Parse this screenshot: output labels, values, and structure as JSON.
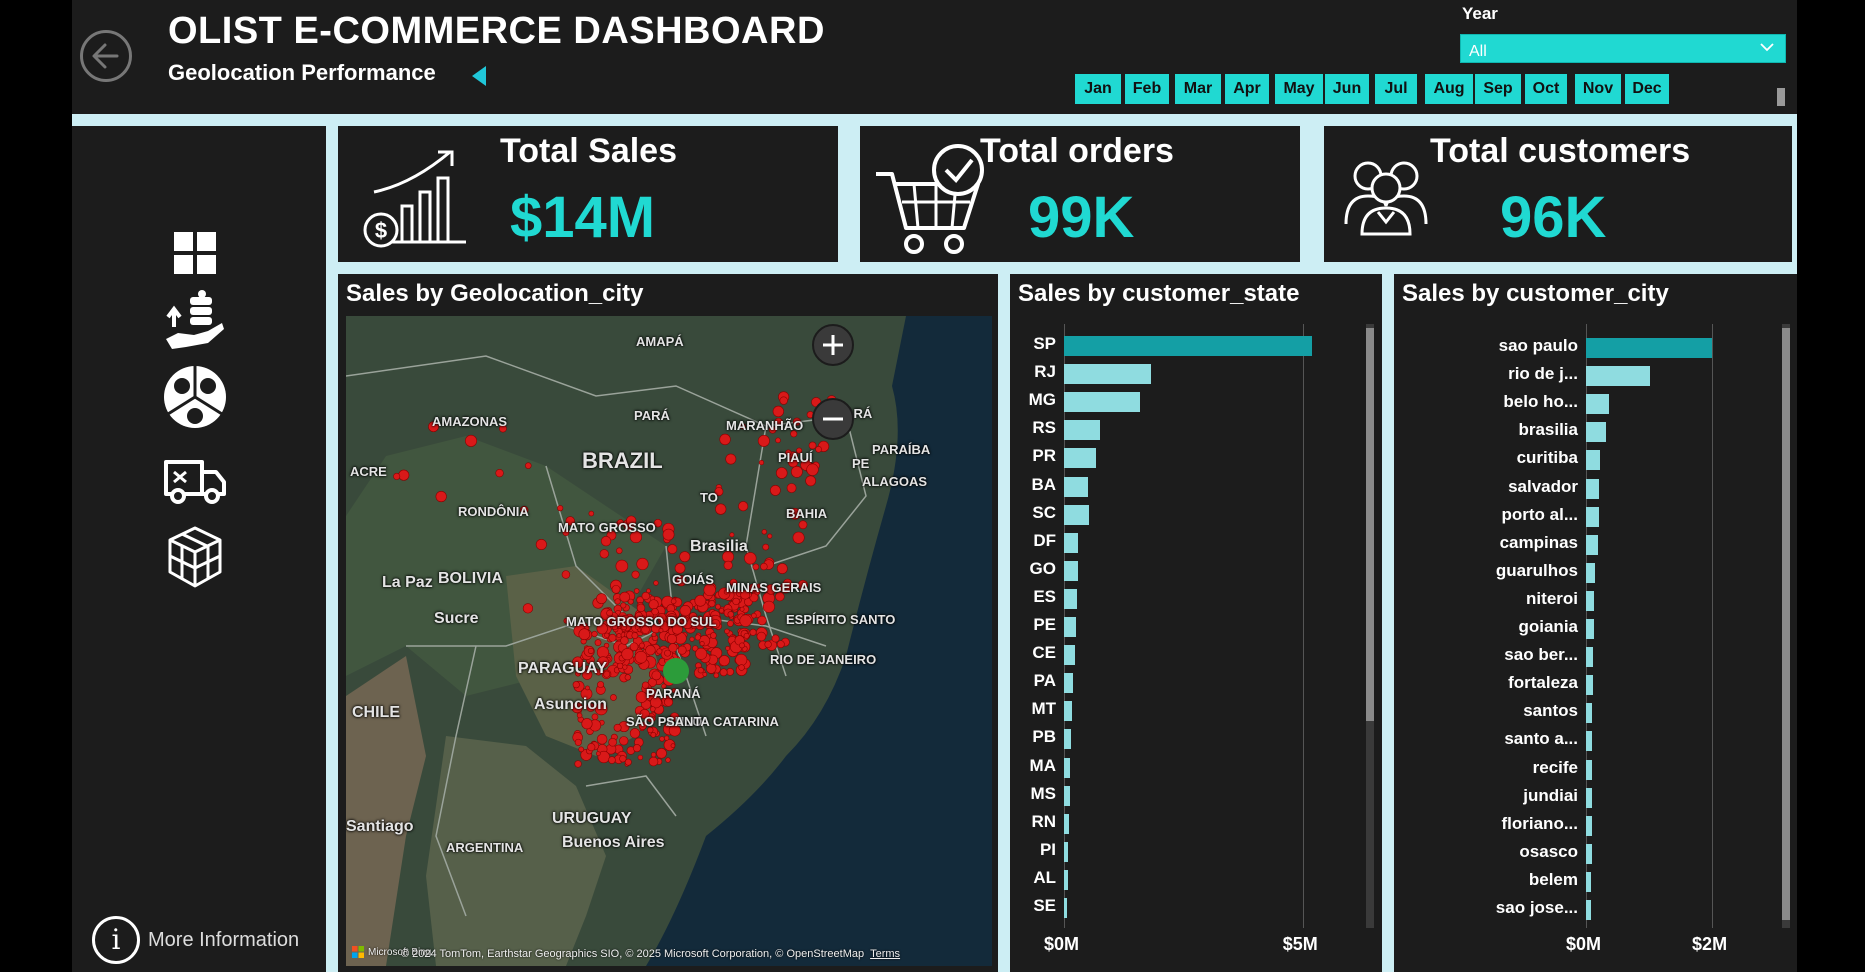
{
  "header": {
    "title": "OLIST E-COMMERCE DASHBOARD",
    "subtitle": "Geolocation Performance",
    "year_label": "Year",
    "year_value": "All",
    "months": [
      "Jan",
      "Feb",
      "Mar",
      "Apr",
      "May",
      "Jun",
      "Jul",
      "Aug",
      "Sep",
      "Oct",
      "Nov",
      "Dec"
    ]
  },
  "sidebar": {
    "nav_icons": [
      "dashboard-grid-icon",
      "money-hand-icon",
      "customer-sentiment-icon",
      "delivery-truck-icon",
      "products-cubes-icon"
    ],
    "more_info": "More Information"
  },
  "kpis": [
    {
      "label": "Total Sales",
      "value": "$14M",
      "icon": "sales-growth-icon"
    },
    {
      "label": "Total orders",
      "value": "99K",
      "icon": "shopping-cart-check-icon"
    },
    {
      "label": "Total customers",
      "value": "96K",
      "icon": "customers-group-icon"
    }
  ],
  "map": {
    "title": "Sales by Geolocation_city",
    "places": [
      "AMAPÁ",
      "AMAZONAS",
      "PARÁ",
      "MARANHÃO",
      "CEARÁ",
      "BRAZIL",
      "PIAUÍ",
      "PE",
      "PARAÍBA",
      "ACRE",
      "ALAGOAS",
      "RONDÔNIA",
      "TO",
      "BAHIA",
      "MATO GROSSO",
      "Brasilia",
      "La Paz",
      "BOLIVIA",
      "GOIÁS",
      "MINAS GERAIS",
      "Sucre",
      "MATO GROSSO DO SUL",
      "ESPÍRITO SANTO",
      "RIO DE JANEIRO",
      "PARAGUAY",
      "CHILE",
      "Asuncion",
      "PARANÁ",
      "SÃO PAULO",
      "SANTA CATARINA",
      "URUGUAY",
      "Santiago",
      "Buenos Aires",
      "ARGENTINA"
    ],
    "credit": "© 2024 TomTom, Earthstar Geographics SIO, © 2025 Microsoft Corporation, © OpenStreetMap",
    "terms": "Terms",
    "microsoft": "Microsoft Bing",
    "colors": {
      "dot": "#d91919",
      "cluster": "#2c9c3a"
    }
  },
  "chart_data": [
    {
      "type": "bar",
      "orientation": "horizontal",
      "title": "Sales by customer_state",
      "categories": [
        "SP",
        "RJ",
        "MG",
        "RS",
        "PR",
        "BA",
        "SC",
        "DF",
        "GO",
        "ES",
        "PE",
        "CE",
        "PA",
        "MT",
        "PB",
        "MA",
        "MS",
        "RN",
        "PI",
        "AL",
        "SE"
      ],
      "values": [
        5.2,
        1.82,
        1.59,
        0.75,
        0.68,
        0.51,
        0.52,
        0.3,
        0.29,
        0.28,
        0.26,
        0.22,
        0.18,
        0.16,
        0.14,
        0.12,
        0.12,
        0.1,
        0.09,
        0.08,
        0.06
      ],
      "unit": "M",
      "xlim": [
        0,
        6.2
      ],
      "ticks": [
        {
          "value": 0,
          "label": "$0M"
        },
        {
          "value": 5,
          "label": "$5M"
        }
      ],
      "colors": {
        "top": "#149fa5",
        "rest": "#8fdce0"
      }
    },
    {
      "type": "bar",
      "orientation": "horizontal",
      "title": "Sales by customer_city",
      "categories": [
        "sao paulo",
        "rio de j...",
        "belo ho...",
        "brasilia",
        "curitiba",
        "salvador",
        "porto al...",
        "campinas",
        "guarulhos",
        "niteroi",
        "goiania",
        "sao ber...",
        "fortaleza",
        "santos",
        "santo a...",
        "recife",
        "jundiai",
        "floriano...",
        "osasco",
        "belem",
        "sao jose..."
      ],
      "values": [
        2.0,
        1.02,
        0.36,
        0.31,
        0.22,
        0.2,
        0.2,
        0.19,
        0.14,
        0.12,
        0.12,
        0.11,
        0.11,
        0.1,
        0.1,
        0.1,
        0.09,
        0.09,
        0.09,
        0.08,
        0.08
      ],
      "unit": "M",
      "xlim": [
        0,
        3.3
      ],
      "ticks": [
        {
          "value": 0,
          "label": "$0M"
        },
        {
          "value": 2,
          "label": "$2M"
        }
      ],
      "colors": {
        "top": "#149fa5",
        "rest": "#8fdce0"
      }
    }
  ]
}
